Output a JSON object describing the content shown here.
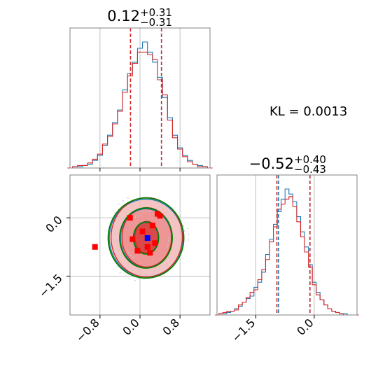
{
  "colors": {
    "series_a": "#1f77b4",
    "series_b": "#d62728",
    "contour_green": "#008000",
    "marker_blue": "#0000ff",
    "marker_red": "#ff0000",
    "fill_red": "#e57373",
    "grid": "#b0b0b0",
    "frame": "#808080"
  },
  "chart_data": [
    {
      "type": "histogram",
      "panel": "param1-marginal",
      "title": {
        "value": "0.12",
        "upper": "+0.31",
        "lower": "−0.31"
      },
      "xlim": [
        -1.4,
        1.4
      ],
      "bin_centers": [
        -1.4,
        -1.3,
        -1.2,
        -1.1,
        -1.0,
        -0.9,
        -0.8,
        -0.7,
        -0.6,
        -0.5,
        -0.4,
        -0.3,
        -0.2,
        -0.1,
        0.0,
        0.1,
        0.2,
        0.3,
        0.4,
        0.5,
        0.6,
        0.7,
        0.8,
        0.9,
        1.0,
        1.1,
        1.2,
        1.3,
        1.4
      ],
      "series": [
        {
          "color": "#1f77b4",
          "counts": [
            0,
            1,
            1,
            2,
            3,
            6,
            10,
            18,
            26,
            36,
            46,
            62,
            75,
            84,
            95,
            100,
            92,
            84,
            72,
            56,
            40,
            26,
            16,
            10,
            6,
            3,
            2,
            1,
            0
          ]
        },
        {
          "color": "#d62728",
          "counts": [
            0,
            1,
            2,
            2,
            4,
            7,
            11,
            19,
            25,
            35,
            45,
            60,
            73,
            83,
            92,
            92,
            90,
            86,
            70,
            58,
            38,
            24,
            15,
            9,
            5,
            3,
            1,
            1,
            0
          ]
        }
      ],
      "quantile_lines": [
        {
          "color": "#d62728",
          "x": -0.19
        },
        {
          "color": "#1f77b4",
          "x": 0.43
        },
        {
          "color": "#d62728",
          "x": 0.43
        }
      ],
      "xticks": [
        -0.8,
        0.0,
        0.8
      ]
    },
    {
      "type": "histogram",
      "panel": "param2-marginal",
      "title": {
        "value": "−0.52",
        "upper": "+0.40",
        "lower": "−0.43"
      },
      "xlim": [
        -2.5,
        1.1
      ],
      "bin_centers": [
        -2.5,
        -2.4,
        -2.3,
        -2.2,
        -2.1,
        -2.0,
        -1.9,
        -1.8,
        -1.7,
        -1.6,
        -1.5,
        -1.4,
        -1.3,
        -1.2,
        -1.1,
        -1.0,
        -0.9,
        -0.8,
        -0.7,
        -0.6,
        -0.5,
        -0.4,
        -0.3,
        -0.2,
        -0.1,
        0.0,
        0.1,
        0.2,
        0.3,
        0.4,
        0.5,
        0.6,
        0.7,
        0.8,
        0.9,
        1.0,
        1.1
      ],
      "series": [
        {
          "color": "#1f77b4",
          "counts": [
            0,
            1,
            1,
            2,
            3,
            5,
            7,
            10,
            13,
            15,
            22,
            26,
            34,
            48,
            60,
            72,
            82,
            92,
            100,
            96,
            90,
            78,
            66,
            54,
            40,
            26,
            18,
            12,
            8,
            5,
            3,
            2,
            1,
            1,
            0,
            0,
            0
          ]
        },
        {
          "color": "#d62728",
          "counts": [
            0,
            1,
            2,
            3,
            3,
            4,
            8,
            10,
            14,
            18,
            20,
            28,
            36,
            44,
            58,
            70,
            84,
            88,
            92,
            94,
            86,
            74,
            62,
            50,
            38,
            24,
            16,
            12,
            8,
            5,
            3,
            2,
            1,
            0,
            0,
            0,
            0
          ]
        }
      ],
      "quantile_lines": [
        {
          "color": "#d62728",
          "x": -0.96
        },
        {
          "color": "#1f77b4",
          "x": -0.92
        },
        {
          "color": "#1f77b4",
          "x": -0.11
        },
        {
          "color": "#d62728",
          "x": -0.11
        }
      ],
      "xticks": [
        -1.5,
        0.0
      ]
    },
    {
      "type": "scatter",
      "panel": "joint-density",
      "xlim": [
        -1.4,
        1.4
      ],
      "ylim": [
        -2.5,
        1.1
      ],
      "center": [
        0.12,
        -0.52
      ],
      "contour_levels": [
        {
          "rx": 0.24,
          "ry": 0.4
        },
        {
          "rx": 0.5,
          "ry": 0.75
        },
        {
          "rx": 0.72,
          "ry": 1.0
        }
      ],
      "samples_red": [
        [
          -0.2,
          0.0
        ],
        [
          0.4,
          0.05
        ],
        [
          0.25,
          -0.2
        ],
        [
          0.05,
          -0.35
        ],
        [
          -0.15,
          -0.55
        ],
        [
          0.3,
          -0.65
        ],
        [
          0.15,
          -0.75
        ],
        [
          -0.05,
          -0.85
        ],
        [
          -0.9,
          -0.75
        ],
        [
          0.35,
          0.1
        ],
        [
          0.2,
          -0.9
        ]
      ],
      "sample_blue": [
        0.15,
        -0.52
      ],
      "xticks": [
        -0.8,
        0.0,
        0.8
      ],
      "yticks": [
        0.0,
        -1.5
      ]
    }
  ],
  "annotation": {
    "kl": "KL = 0.0013"
  }
}
